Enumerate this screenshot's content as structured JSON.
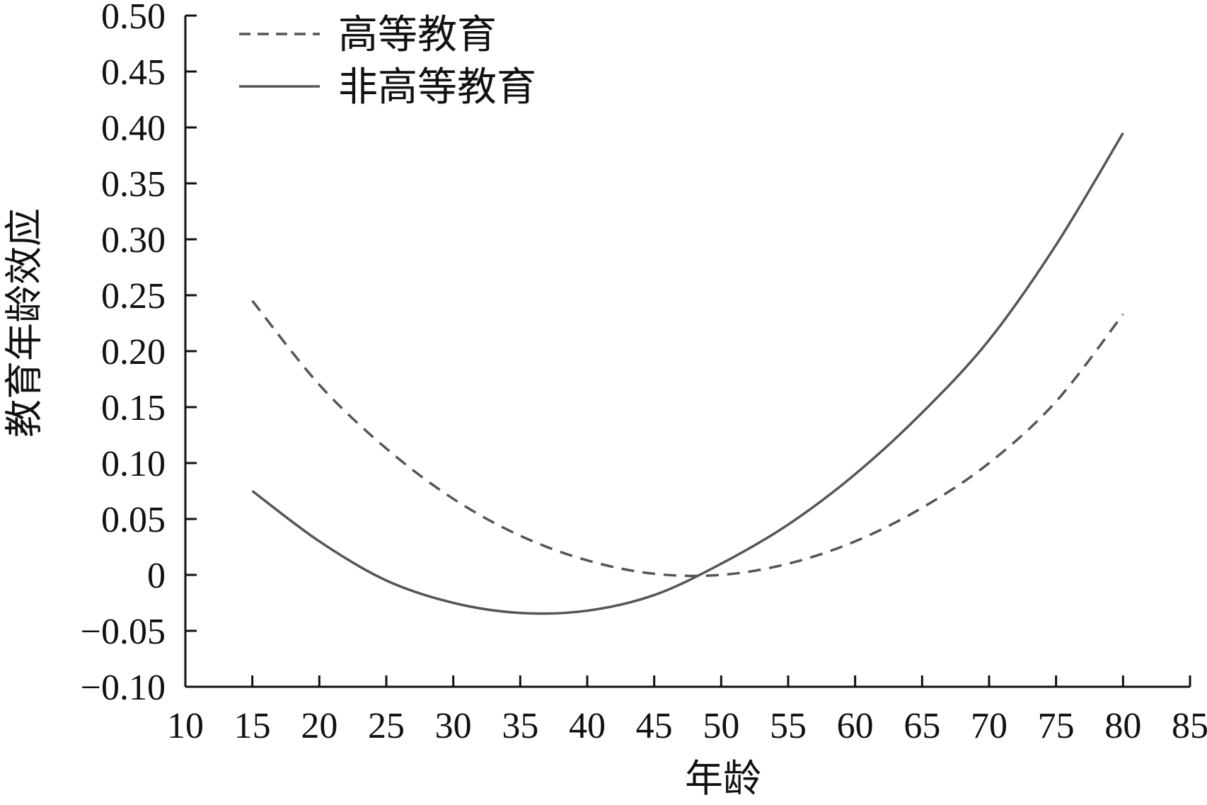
{
  "chart_data": {
    "type": "line",
    "title": "",
    "xlabel": "年龄",
    "ylabel": "教育年龄效应",
    "xlim": [
      10,
      85
    ],
    "ylim": [
      -0.1,
      0.5
    ],
    "x_ticks": [
      "10",
      "15",
      "20",
      "25",
      "30",
      "35",
      "40",
      "45",
      "50",
      "55",
      "60",
      "65",
      "70",
      "75",
      "80",
      "85"
    ],
    "y_ticks": [
      "0.50",
      "0.45",
      "0.40",
      "0.35",
      "0.30",
      "0.25",
      "0.20",
      "0.15",
      "0.10",
      "0.05",
      "0",
      "−0.05",
      "−0.10"
    ],
    "x_tick_values": [
      10,
      15,
      20,
      25,
      30,
      35,
      40,
      45,
      50,
      55,
      60,
      65,
      70,
      75,
      80,
      85
    ],
    "y_tick_values": [
      0.5,
      0.45,
      0.4,
      0.35,
      0.3,
      0.25,
      0.2,
      0.15,
      0.1,
      0.05,
      0,
      -0.05,
      -0.1
    ],
    "grid": false,
    "legend_position": "top-left",
    "series": [
      {
        "name": "高等教育",
        "style": "dashed",
        "color": "#555555",
        "x": [
          15,
          20,
          25,
          30,
          35,
          40,
          45,
          50,
          55,
          60,
          65,
          70,
          75,
          80
        ],
        "y": [
          0.245,
          0.17,
          0.113,
          0.068,
          0.035,
          0.013,
          0.001,
          0.0,
          0.01,
          0.03,
          0.06,
          0.1,
          0.155,
          0.233
        ]
      },
      {
        "name": "非高等教育",
        "style": "solid",
        "color": "#555555",
        "x": [
          15,
          20,
          25,
          30,
          35,
          40,
          45,
          50,
          55,
          60,
          65,
          70,
          75,
          80
        ],
        "y": [
          0.075,
          0.03,
          -0.005,
          -0.025,
          -0.034,
          -0.032,
          -0.018,
          0.01,
          0.045,
          0.09,
          0.145,
          0.21,
          0.295,
          0.395
        ]
      }
    ]
  }
}
